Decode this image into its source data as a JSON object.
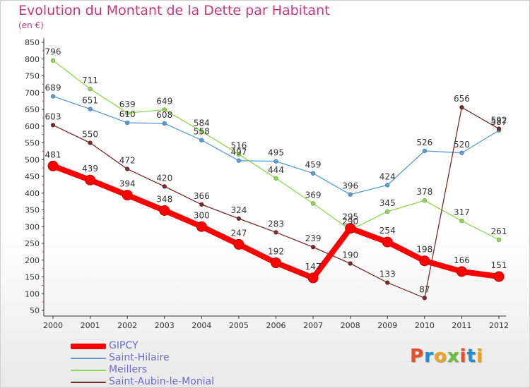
{
  "header": {
    "title": "Evolution du Montant de la Dette par Habitant",
    "subtitle": "(en €)"
  },
  "logo": {
    "text": "Proxiti",
    "colors": [
      "#e8502a",
      "#1f8fcf",
      "#f0a41d",
      "#6cbf3b",
      "#e8502a",
      "#1f8fcf",
      "#f0a41d"
    ]
  },
  "chart_data": {
    "type": "line",
    "title": "Evolution du Montant de la Dette par Habitant",
    "subtitle": "(en €)",
    "xlabel": "",
    "ylabel": "",
    "categories": [
      "2000",
      "2001",
      "2002",
      "2003",
      "2004",
      "2005",
      "2006",
      "2007",
      "2008",
      "2009",
      "2010",
      "2011",
      "2012"
    ],
    "yticks": [
      50,
      100,
      150,
      200,
      250,
      300,
      350,
      400,
      450,
      500,
      550,
      600,
      650,
      700,
      750,
      800,
      850
    ],
    "ylim": [
      50,
      850
    ],
    "grid": false,
    "legend_position": "bottom-left",
    "series": [
      {
        "name": "Saint-Hilaire",
        "color": "#5b9bd5",
        "values": [
          689,
          651,
          610,
          608,
          558,
          497,
          495,
          459,
          396,
          424,
          526,
          520,
          587
        ],
        "labels": [
          "689",
          "651",
          "610",
          "608",
          "558",
          "497",
          "495",
          "459",
          "396",
          "424",
          "526",
          "520",
          "587"
        ]
      },
      {
        "name": "Meillers",
        "color": "#8ed84d",
        "values": [
          796,
          711,
          639,
          649,
          584,
          516,
          444,
          369,
          290,
          345,
          378,
          317,
          261
        ],
        "labels": [
          "796",
          "711",
          "639",
          "649",
          "584",
          "516",
          "444",
          "369",
          "290",
          "345",
          "378",
          "317",
          "261"
        ]
      },
      {
        "name": "Saint-Aubin-le-Monial",
        "color": "#7a2a2a",
        "values": [
          603,
          550,
          472,
          420,
          366,
          324,
          283,
          239,
          190,
          133,
          87,
          656,
          592
        ],
        "labels": [
          "603",
          "550",
          "472",
          "420",
          "366",
          "324",
          "283",
          "239",
          "190",
          "133",
          "87",
          "656",
          "592"
        ]
      },
      {
        "name": "GIPCY",
        "color": "#ff0000",
        "values": [
          481,
          439,
          394,
          348,
          300,
          247,
          192,
          147,
          295,
          254,
          198,
          166,
          151
        ],
        "labels": [
          "481",
          "439",
          "394",
          "348",
          "300",
          "247",
          "192",
          "147",
          "295",
          "254",
          "198",
          "166",
          "151"
        ]
      }
    ]
  }
}
